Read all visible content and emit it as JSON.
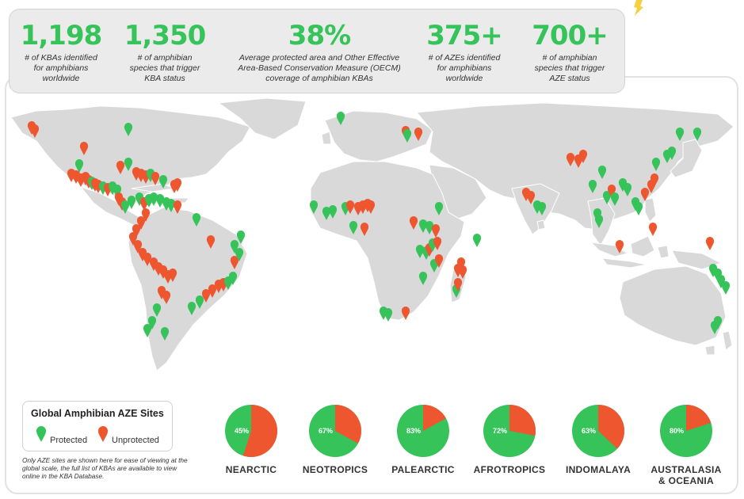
{
  "stats": [
    {
      "value": "1,198",
      "desc": [
        "# of KBAs identified",
        "for amphibians",
        "worldwide"
      ]
    },
    {
      "value": "1,350",
      "desc": [
        "# of amphibian",
        "species that trigger",
        "KBA status"
      ]
    },
    {
      "value": "38%",
      "desc": [
        "Average protected area and Other Effective",
        "Area-Based Conservation Measure (OECM)",
        "coverage of amphibian KBAs"
      ]
    },
    {
      "value": "375+",
      "desc": [
        "# of AZEs identified",
        "for amphibians",
        "worldwide"
      ]
    },
    {
      "value": "700+",
      "desc": [
        "# of amphibian",
        "species that trigger",
        "AZE status"
      ]
    }
  ],
  "legend": {
    "title": "Global Amphibian AZE Sites",
    "protected_label": "Protected",
    "unprotected_label": "Unprotected"
  },
  "footnote": "Only AZE sites are shown here for ease of viewing at the global scale, the full list of KBAs are available to view online in the KBA Database.",
  "colors": {
    "protected": "#35c35a",
    "unprotected": "#ee5630",
    "land": "#d9d9d9",
    "stat_green": "#35c35a"
  },
  "chart_data": {
    "type": "pie",
    "categories": [
      "NEARCTIC",
      "NEOTROPICS",
      "PALEARCTIC",
      "AFROTROPICS",
      "INDOMALAYA",
      "AUSTRALASIA & OCEANIA"
    ],
    "series": [
      {
        "name": "Protected",
        "values": [
          45,
          67,
          83,
          72,
          63,
          80
        ]
      },
      {
        "name": "Unprotected",
        "values": [
          55,
          33,
          17,
          28,
          37,
          20
        ]
      }
    ],
    "labels": [
      "45%",
      "67%",
      "83%",
      "72%",
      "63%",
      "80%"
    ]
  }
}
